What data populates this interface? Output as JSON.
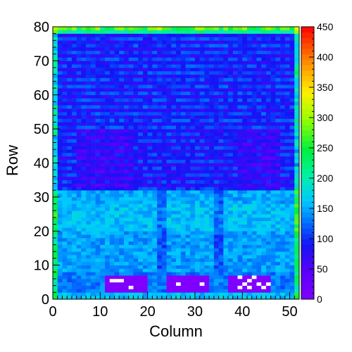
{
  "chart_data": {
    "type": "heatmap",
    "title": "",
    "xlabel": "Column",
    "ylabel": "Row",
    "xlim": [
      0,
      52
    ],
    "ylim": [
      0,
      80
    ],
    "x_ticks": [
      0,
      10,
      20,
      30,
      40,
      50
    ],
    "y_ticks": [
      0,
      10,
      20,
      30,
      40,
      50,
      60,
      70,
      80
    ],
    "colorbar": {
      "min": 0,
      "max": 450,
      "ticks": [
        0,
        50,
        100,
        150,
        200,
        250,
        300,
        350,
        400,
        450
      ]
    },
    "columns": 52,
    "rows": 80,
    "row_band_means": [
      {
        "rows": [
          0,
          2
        ],
        "value": 160
      },
      {
        "rows": [
          2,
          8
        ],
        "value": 130
      },
      {
        "rows": [
          8,
          20
        ],
        "value": 145
      },
      {
        "rows": [
          20,
          28
        ],
        "value": 160
      },
      {
        "rows": [
          28,
          32
        ],
        "value": 150
      },
      {
        "rows": [
          32,
          50
        ],
        "value": 95
      },
      {
        "rows": [
          50,
          78
        ],
        "value": 100
      },
      {
        "rows": [
          78,
          80
        ],
        "value": 200
      }
    ],
    "empty_regions_value0": [
      {
        "columns": [
          11,
          20
        ],
        "rows": [
          2,
          7
        ]
      },
      {
        "columns": [
          24,
          33
        ],
        "rows": [
          2,
          7
        ]
      },
      {
        "columns": [
          37,
          46
        ],
        "rows": [
          2,
          7
        ]
      }
    ],
    "saturated_cells_above_max": [
      [
        12,
        5
      ],
      [
        13,
        5
      ],
      [
        14,
        5
      ],
      [
        16,
        3
      ],
      [
        26,
        4
      ],
      [
        31,
        4
      ],
      [
        39,
        3
      ],
      [
        40,
        4
      ],
      [
        41,
        5
      ],
      [
        42,
        6
      ],
      [
        43,
        4
      ],
      [
        44,
        3
      ],
      [
        45,
        4
      ],
      [
        41,
        3
      ],
      [
        39,
        6
      ]
    ],
    "grid": false,
    "legend": "colorbar-right"
  }
}
